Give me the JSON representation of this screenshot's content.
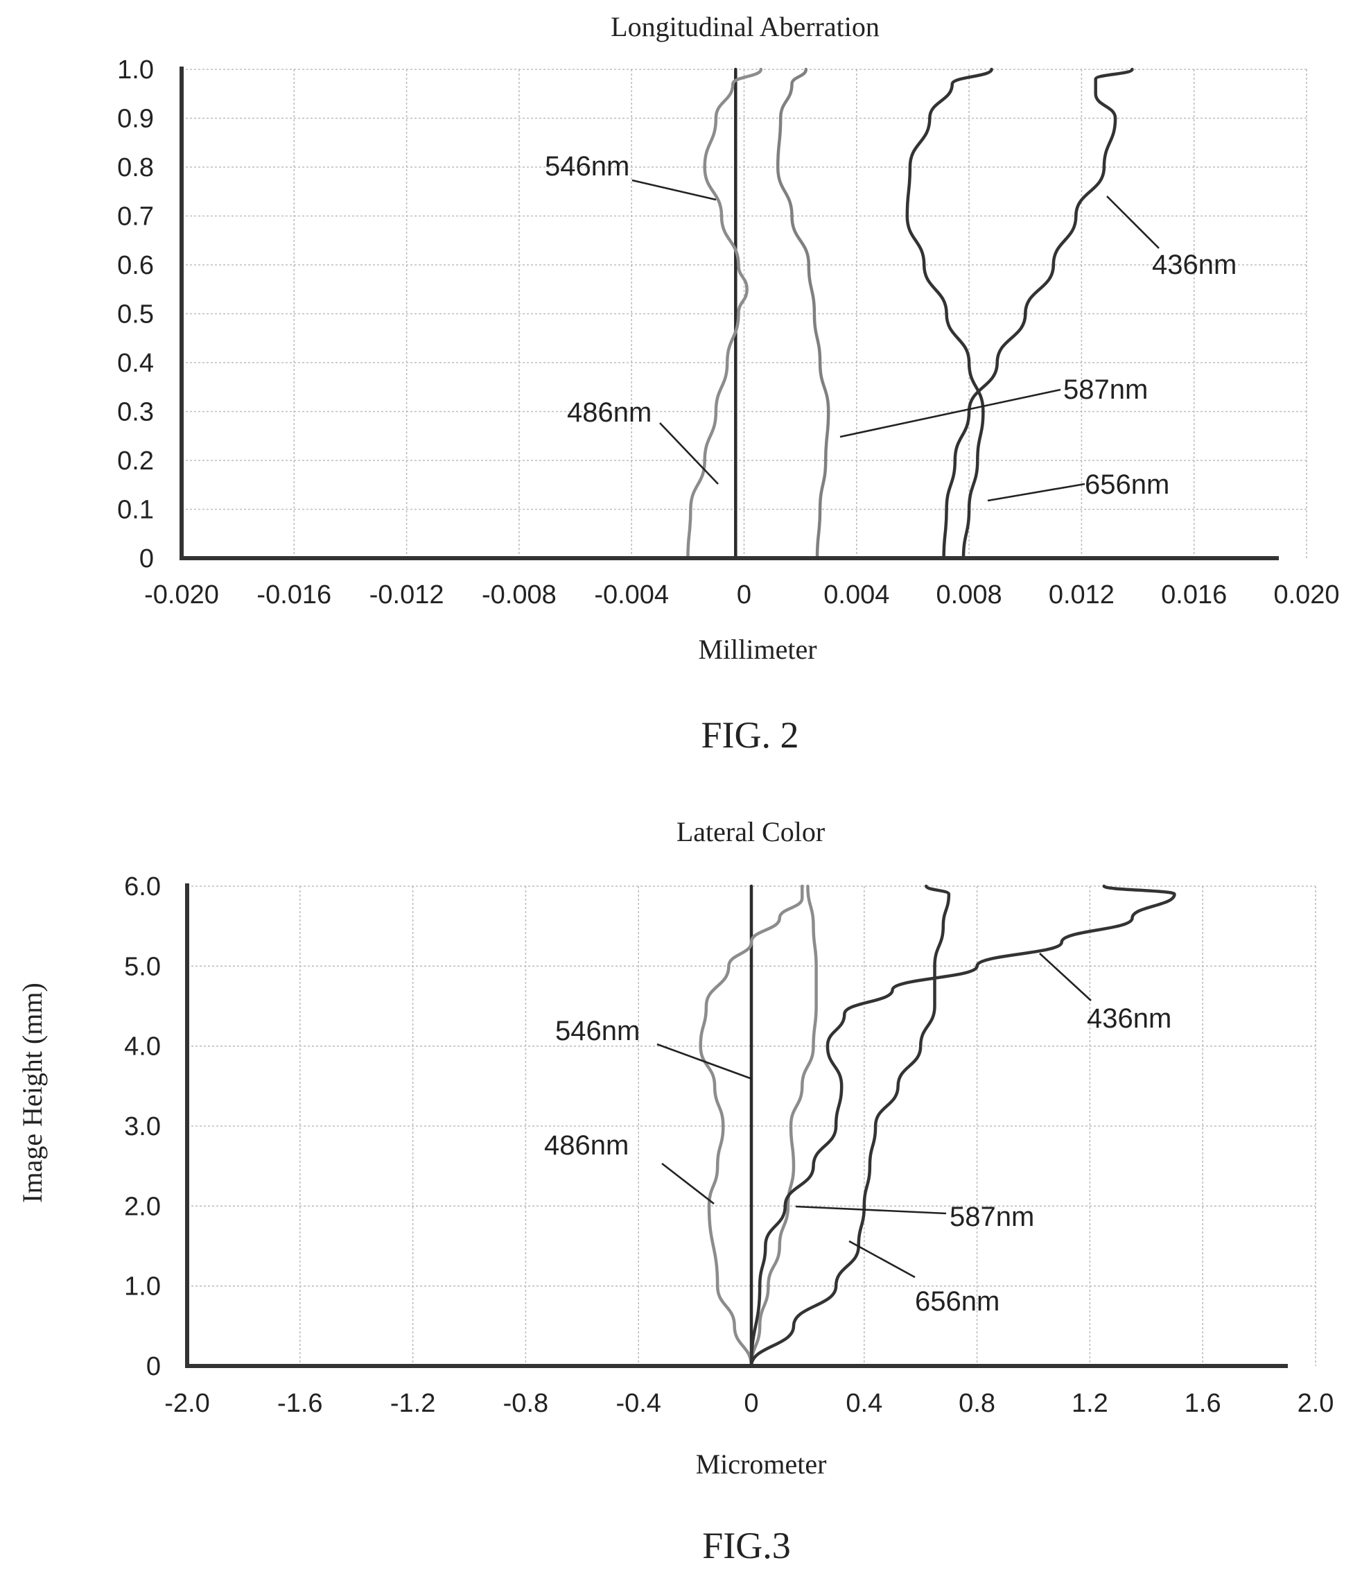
{
  "figures": [
    {
      "caption": "FIG. 2"
    },
    {
      "caption": "FIG.3"
    }
  ],
  "chart_data": [
    {
      "type": "line",
      "title": "Longitudinal Aberration",
      "xlabel": "Millimeter",
      "ylabel": "",
      "xlim": [
        -0.02,
        0.02
      ],
      "ylim": [
        0,
        1.0
      ],
      "x_ticks": [
        "-0.020",
        "-0.016",
        "-0.012",
        "-0.008",
        "-0.004",
        "0",
        "0.004",
        "0.008",
        "0.012",
        "0.016",
        "0.020"
      ],
      "y_ticks": [
        "0",
        "0.1",
        "0.2",
        "0.3",
        "0.4",
        "0.5",
        "0.6",
        "0.7",
        "0.8",
        "0.9",
        "1.0"
      ],
      "grid": true,
      "series": [
        {
          "name": "546nm",
          "color": "#2b2b2b",
          "points": [
            [
              -0.0003,
              0
            ],
            [
              -0.0003,
              0.2
            ],
            [
              -0.0003,
              0.4
            ],
            [
              -0.0003,
              0.6
            ],
            [
              -0.0003,
              0.8
            ],
            [
              -0.0003,
              0.93
            ],
            [
              -0.0003,
              1.0
            ]
          ]
        },
        {
          "name": "486nm",
          "color": "#8c8c8c",
          "points": [
            [
              -0.002,
              0
            ],
            [
              -0.0019,
              0.1
            ],
            [
              -0.0014,
              0.2
            ],
            [
              -0.001,
              0.3
            ],
            [
              -0.0006,
              0.4
            ],
            [
              -0.0002,
              0.5
            ],
            [
              0.0001,
              0.55
            ],
            [
              -0.0002,
              0.6
            ],
            [
              -0.0008,
              0.7
            ],
            [
              -0.0014,
              0.8
            ],
            [
              -0.001,
              0.9
            ],
            [
              -0.0004,
              0.97
            ],
            [
              0.0006,
              1.0
            ]
          ]
        },
        {
          "name": "587nm",
          "color": "#808080",
          "points": [
            [
              0.0026,
              0
            ],
            [
              0.0027,
              0.1
            ],
            [
              0.0029,
              0.2
            ],
            [
              0.003,
              0.3
            ],
            [
              0.0027,
              0.4
            ],
            [
              0.0025,
              0.5
            ],
            [
              0.0023,
              0.6
            ],
            [
              0.0017,
              0.7
            ],
            [
              0.0012,
              0.8
            ],
            [
              0.0013,
              0.9
            ],
            [
              0.0017,
              0.97
            ],
            [
              0.0022,
              1.0
            ]
          ]
        },
        {
          "name": "656nm",
          "color": "#333333",
          "points": [
            [
              0.0078,
              0
            ],
            [
              0.008,
              0.1
            ],
            [
              0.0083,
              0.2
            ],
            [
              0.0085,
              0.3
            ],
            [
              0.008,
              0.4
            ],
            [
              0.0072,
              0.5
            ],
            [
              0.0064,
              0.6
            ],
            [
              0.0058,
              0.7
            ],
            [
              0.0059,
              0.8
            ],
            [
              0.0066,
              0.9
            ],
            [
              0.0074,
              0.97
            ],
            [
              0.0088,
              1.0
            ]
          ]
        },
        {
          "name": "436nm",
          "color": "#333333",
          "points": [
            [
              0.0071,
              0
            ],
            [
              0.0072,
              0.1
            ],
            [
              0.0075,
              0.2
            ],
            [
              0.008,
              0.3
            ],
            [
              0.009,
              0.4
            ],
            [
              0.01,
              0.5
            ],
            [
              0.011,
              0.6
            ],
            [
              0.0118,
              0.7
            ],
            [
              0.0128,
              0.8
            ],
            [
              0.0132,
              0.9
            ],
            [
              0.0125,
              0.95
            ],
            [
              0.0125,
              0.98
            ],
            [
              0.0138,
              1.0
            ]
          ]
        }
      ]
    },
    {
      "type": "line",
      "title": "Lateral Color",
      "xlabel": "Micrometer",
      "ylabel": "Image Height (mm)",
      "xlim": [
        -2.0,
        2.0
      ],
      "ylim": [
        0,
        6.0
      ],
      "x_ticks": [
        "-2.0",
        "-1.6",
        "-1.2",
        "-0.8",
        "-0.4",
        "0",
        "0.4",
        "0.8",
        "1.2",
        "1.6",
        "2.0"
      ],
      "y_ticks": [
        "0",
        "1.0",
        "2.0",
        "3.0",
        "4.0",
        "5.0",
        "6.0"
      ],
      "grid": true,
      "series": [
        {
          "name": "546nm",
          "color": "#2b2b2b",
          "points": [
            [
              0,
              0
            ],
            [
              0,
              1.0
            ],
            [
              0,
              2.0
            ],
            [
              0,
              3.0
            ],
            [
              0,
              4.0
            ],
            [
              0,
              5.0
            ],
            [
              0,
              6.0
            ]
          ]
        },
        {
          "name": "486nm",
          "color": "#8c8c8c",
          "points": [
            [
              0,
              0
            ],
            [
              -0.06,
              0.5
            ],
            [
              -0.12,
              1.0
            ],
            [
              -0.15,
              2.0
            ],
            [
              -0.12,
              2.5
            ],
            [
              -0.1,
              3.0
            ],
            [
              -0.13,
              3.5
            ],
            [
              -0.18,
              4.0
            ],
            [
              -0.16,
              4.5
            ],
            [
              -0.08,
              5.0
            ],
            [
              0.0,
              5.3
            ],
            [
              0.1,
              5.6
            ],
            [
              0.18,
              5.85
            ],
            [
              0.18,
              6.0
            ]
          ]
        },
        {
          "name": "587nm",
          "color": "#8c8c8c",
          "points": [
            [
              0,
              0
            ],
            [
              0.03,
              0.5
            ],
            [
              0.06,
              1.0
            ],
            [
              0.1,
              1.5
            ],
            [
              0.13,
              2.0
            ],
            [
              0.15,
              2.5
            ],
            [
              0.14,
              3.0
            ],
            [
              0.18,
              3.5
            ],
            [
              0.22,
              4.0
            ],
            [
              0.23,
              4.5
            ],
            [
              0.23,
              5.0
            ],
            [
              0.22,
              5.5
            ],
            [
              0.2,
              6.0
            ]
          ]
        },
        {
          "name": "656nm",
          "color": "#333333",
          "points": [
            [
              0,
              0
            ],
            [
              0.15,
              0.5
            ],
            [
              0.3,
              1.0
            ],
            [
              0.38,
              1.5
            ],
            [
              0.4,
              2.0
            ],
            [
              0.42,
              2.5
            ],
            [
              0.44,
              3.0
            ],
            [
              0.52,
              3.5
            ],
            [
              0.6,
              4.0
            ],
            [
              0.65,
              4.5
            ],
            [
              0.65,
              5.0
            ],
            [
              0.68,
              5.5
            ],
            [
              0.7,
              5.9
            ],
            [
              0.62,
              6.0
            ]
          ]
        },
        {
          "name": "436nm",
          "color": "#333333",
          "points": [
            [
              0,
              0
            ],
            [
              0.03,
              1.0
            ],
            [
              0.05,
              1.5
            ],
            [
              0.12,
              2.0
            ],
            [
              0.22,
              2.5
            ],
            [
              0.3,
              3.0
            ],
            [
              0.32,
              3.5
            ],
            [
              0.27,
              4.0
            ],
            [
              0.33,
              4.4
            ],
            [
              0.5,
              4.7
            ],
            [
              0.8,
              5.0
            ],
            [
              1.1,
              5.3
            ],
            [
              1.35,
              5.6
            ],
            [
              1.5,
              5.9
            ],
            [
              1.25,
              6.0
            ]
          ]
        }
      ]
    }
  ]
}
